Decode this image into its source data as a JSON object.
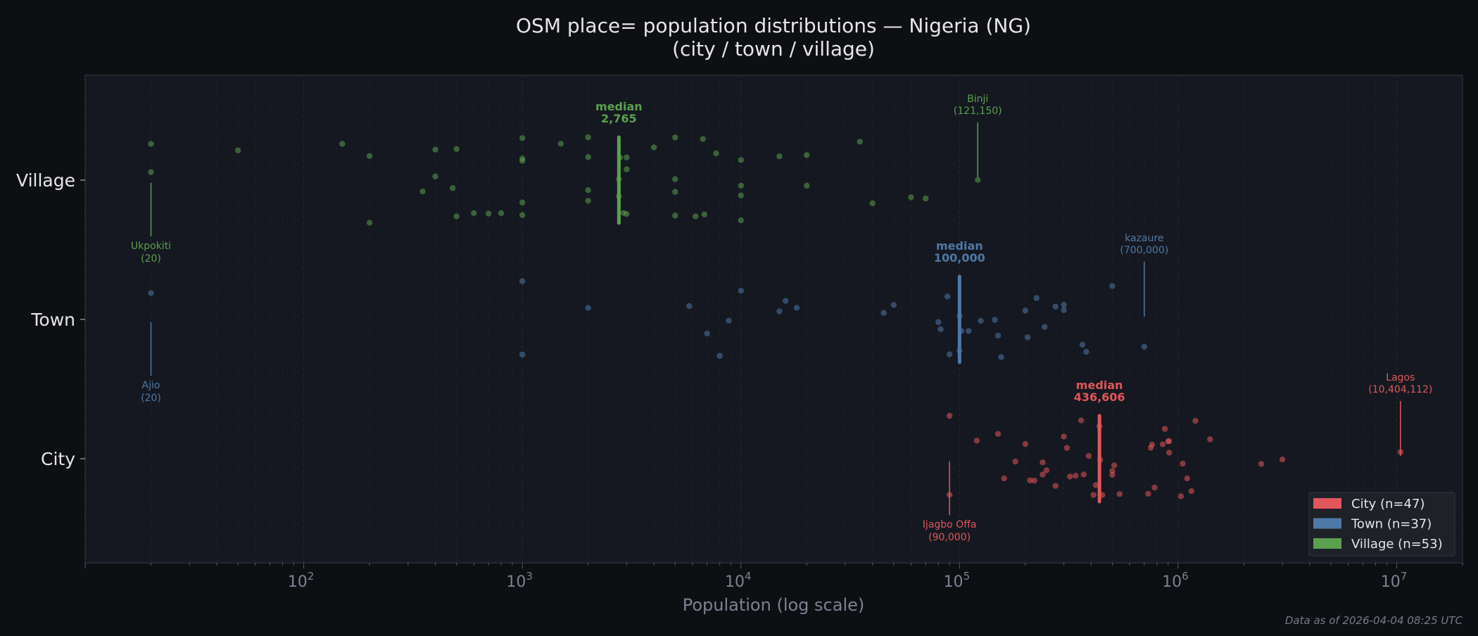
{
  "chart_data": {
    "type": "scatter",
    "title": "OSM place= population distributions — Nigeria (NG)",
    "subtitle": "(city / town / village)",
    "xlabel": "Population (log scale)",
    "ylabel": "",
    "xscale": "log",
    "xlim": [
      10,
      20000000
    ],
    "x_ticks": [
      {
        "value": 100,
        "base": "10",
        "exp": "2"
      },
      {
        "value": 1000,
        "base": "10",
        "exp": "3"
      },
      {
        "value": 10000,
        "base": "10",
        "exp": "4"
      },
      {
        "value": 100000,
        "base": "10",
        "exp": "5"
      },
      {
        "value": 1000000,
        "base": "10",
        "exp": "6"
      },
      {
        "value": 10000000,
        "base": "10",
        "exp": "7"
      }
    ],
    "categories": [
      "Village",
      "Town",
      "City"
    ],
    "grid": "vertical dashed at log ticks",
    "legend_position": "bottom-right",
    "footer": "Data as of 2026-04-04 08:25 UTC",
    "median_label": "median",
    "series": [
      {
        "category": "City",
        "legend": "City  (n=47)",
        "color": "#e15759",
        "median": 436606,
        "median_text": "436,606",
        "max": {
          "name": "Lagos",
          "value_text": "(10,404,112)",
          "value": 10404112
        },
        "min": {
          "name": "Ijagbo Offa",
          "value_text": "(90,000)",
          "value": 90000
        },
        "values": [
          90000,
          90000,
          120000,
          150000,
          160000,
          180000,
          200000,
          210000,
          220000,
          240000,
          240000,
          250000,
          275000,
          300000,
          310000,
          320000,
          340000,
          360000,
          370000,
          390000,
          410000,
          420000,
          436606,
          440000,
          450000,
          500000,
          500000,
          510000,
          540000,
          730000,
          750000,
          760000,
          780000,
          850000,
          870000,
          900000,
          910000,
          910000,
          1030000,
          1050000,
          1100000,
          1150000,
          1200000,
          1400000,
          2400000,
          3000000,
          10404112
        ]
      },
      {
        "category": "Town",
        "legend": "Town  (n=37)",
        "color": "#4e79a7",
        "median": 100000,
        "median_text": "100,000",
        "max": {
          "name": "kazaure",
          "value_text": "(700,000)",
          "value": 700000
        },
        "min": {
          "name": "Ajio",
          "value_text": "(20)",
          "value": 20
        },
        "values": [
          20,
          1000,
          1000,
          2000,
          5800,
          7000,
          8000,
          8800,
          10000,
          15000,
          16000,
          18000,
          45000,
          50000,
          80000,
          82000,
          88000,
          90000,
          100000,
          100000,
          102000,
          110000,
          125000,
          145000,
          150000,
          155000,
          200000,
          205000,
          225000,
          245000,
          275000,
          300000,
          300000,
          365000,
          380000,
          500000,
          700000
        ]
      },
      {
        "category": "Village",
        "legend": "Village  (n=53)",
        "color": "#59a14f",
        "median": 2765,
        "median_text": "2,765",
        "max": {
          "name": "Binji",
          "value_text": "(121,150)",
          "value": 121150
        },
        "min": {
          "name": "Ukpokiti",
          "value_text": "(20)",
          "value": 20
        },
        "values": [
          20,
          20,
          50,
          150,
          200,
          200,
          350,
          400,
          400,
          480,
          500,
          500,
          600,
          700,
          800,
          1000,
          1000,
          1000,
          1000,
          1000,
          1500,
          2000,
          2000,
          2000,
          2000,
          2765,
          2765,
          2800,
          2900,
          3000,
          3000,
          3000,
          4000,
          5000,
          5000,
          5000,
          5000,
          6200,
          6700,
          6800,
          7700,
          10000,
          10000,
          10000,
          10000,
          15000,
          20000,
          20000,
          35000,
          40000,
          60000,
          70000,
          121150
        ]
      }
    ]
  }
}
